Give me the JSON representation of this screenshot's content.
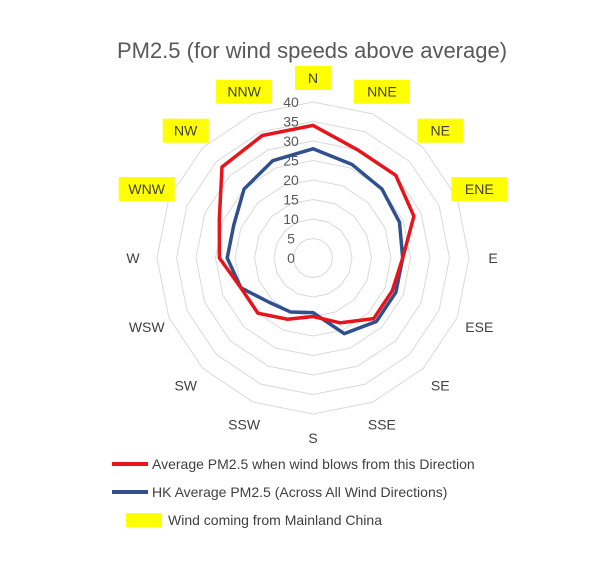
{
  "chart_data": {
    "type": "radar",
    "title": "PM2.5 (for wind speeds above average)",
    "categories": [
      "N",
      "NNE",
      "NE",
      "ENE",
      "E",
      "ESE",
      "SE",
      "SSE",
      "S",
      "SSW",
      "SW",
      "WSW",
      "W",
      "WNW",
      "NW",
      "NNW"
    ],
    "rlim": [
      0,
      40
    ],
    "ticks": [
      "0",
      "5",
      "10",
      "15",
      "20",
      "25",
      "30",
      "35",
      "40"
    ],
    "grid": true,
    "highlighted_categories": [
      "N",
      "NNE",
      "NE",
      "ENE",
      "WNW",
      "NW",
      "NNW"
    ],
    "series": [
      {
        "name": "Average PM2.5 when wind blows from this Direction",
        "color": "#e8141c",
        "values": [
          34,
          30,
          30,
          28,
          23,
          22,
          22,
          18,
          15,
          17,
          20,
          20,
          24,
          26,
          33,
          34
        ]
      },
      {
        "name": "HK Average PM2.5 (Across All Wind Directions)",
        "color": "#2f4f8f",
        "values": [
          28,
          26,
          25,
          24,
          23,
          23,
          23,
          21,
          14,
          15,
          16,
          20,
          22,
          22,
          25,
          27
        ]
      }
    ]
  },
  "legend": {
    "highlight_label": "Wind coming from Mainland China",
    "highlight_color": "#ffff00"
  }
}
